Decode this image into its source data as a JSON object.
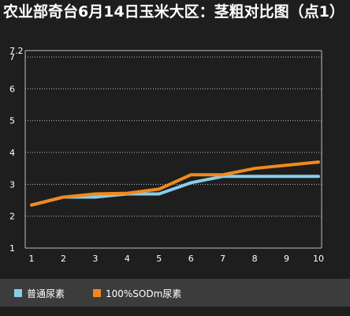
{
  "chart_data": {
    "type": "line",
    "title": "农业部奇台6月14日玉米大区：茎粗对比图（点1）",
    "x": [
      1,
      2,
      3,
      4,
      5,
      6,
      7,
      8,
      9,
      10
    ],
    "xlim": [
      1,
      10
    ],
    "ylim": [
      1,
      7.2
    ],
    "yticks": [
      "7.2",
      "7",
      "6",
      "5",
      "4",
      "3",
      "2",
      "1"
    ],
    "xticks": [
      "1",
      "2",
      "3",
      "4",
      "5",
      "6",
      "7",
      "8",
      "9",
      "10"
    ],
    "grid": true,
    "legend_position": "bottom",
    "series": [
      {
        "name": "普通尿素",
        "color": "#87ceeb",
        "values": [
          2.35,
          2.6,
          2.6,
          2.7,
          2.7,
          3.05,
          3.25,
          3.25,
          3.25,
          3.25
        ]
      },
      {
        "name": "100%SODm尿素",
        "color": "#f08a1c",
        "values": [
          2.35,
          2.6,
          2.7,
          2.72,
          2.85,
          3.3,
          3.3,
          3.5,
          3.6,
          3.7
        ]
      }
    ]
  }
}
